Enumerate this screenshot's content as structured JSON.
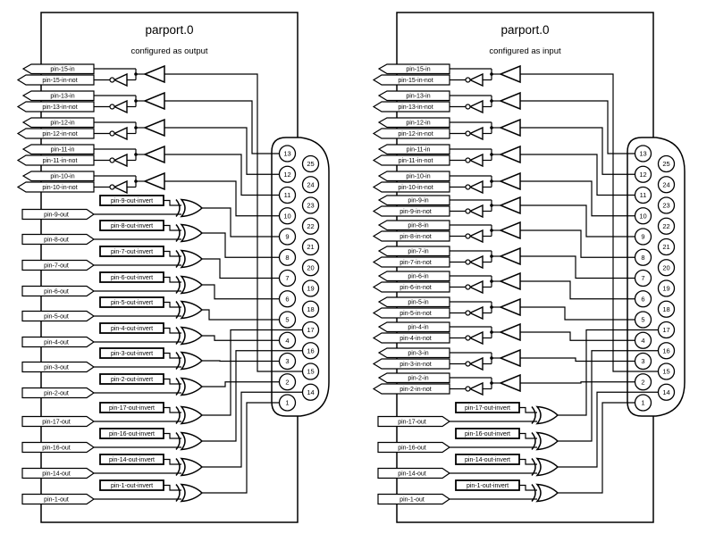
{
  "panels": [
    {
      "title": "parport.0",
      "subtitle": "configured as output",
      "in_pins": [
        {
          "label": "pin-15-in",
          "not_label": "pin-15-in-not",
          "pin": 15
        },
        {
          "label": "pin-13-in",
          "not_label": "pin-13-in-not",
          "pin": 13
        },
        {
          "label": "pin-12-in",
          "not_label": "pin-12-in-not",
          "pin": 12
        },
        {
          "label": "pin-11-in",
          "not_label": "pin-11-in-not",
          "pin": 11
        },
        {
          "label": "pin-10-in",
          "not_label": "pin-10-in-not",
          "pin": 10
        }
      ],
      "out_pins": [
        {
          "label": "pin-9-out",
          "invert_label": "pin-9-out-invert",
          "pin": 9
        },
        {
          "label": "pin-8-out",
          "invert_label": "pin-8-out-invert",
          "pin": 8
        },
        {
          "label": "pin-7-out",
          "invert_label": "pin-7-out-invert",
          "pin": 7
        },
        {
          "label": "pin-6-out",
          "invert_label": "pin-6-out-invert",
          "pin": 6
        },
        {
          "label": "pin-5-out",
          "invert_label": "pin-5-out-invert",
          "pin": 5
        },
        {
          "label": "pin-4-out",
          "invert_label": "pin-4-out-invert",
          "pin": 4
        },
        {
          "label": "pin-3-out",
          "invert_label": "pin-3-out-invert",
          "pin": 3
        },
        {
          "label": "pin-2-out",
          "invert_label": "pin-2-out-invert",
          "pin": 2
        },
        {
          "label": "pin-17-out",
          "invert_label": "pin-17-out-invert",
          "pin": 17
        },
        {
          "label": "pin-16-out",
          "invert_label": "pin-16-out-invert",
          "pin": 16
        },
        {
          "label": "pin-14-out",
          "invert_label": "pin-14-out-invert",
          "pin": 14
        },
        {
          "label": "pin-1-out",
          "invert_label": "pin-1-out-invert",
          "pin": 1
        }
      ]
    },
    {
      "title": "parport.0",
      "subtitle": "configured as input",
      "in_pins": [
        {
          "label": "pin-15-in",
          "not_label": "pin-15-in-not",
          "pin": 15
        },
        {
          "label": "pin-13-in",
          "not_label": "pin-13-in-not",
          "pin": 13
        },
        {
          "label": "pin-12-in",
          "not_label": "pin-12-in-not",
          "pin": 12
        },
        {
          "label": "pin-11-in",
          "not_label": "pin-11-in-not",
          "pin": 11
        },
        {
          "label": "pin-10-in",
          "not_label": "pin-10-in-not",
          "pin": 10
        },
        {
          "label": "pin-9-in",
          "not_label": "pin-9-in-not",
          "pin": 9
        },
        {
          "label": "pin-8-in",
          "not_label": "pin-8-in-not",
          "pin": 8
        },
        {
          "label": "pin-7-in",
          "not_label": "pin-7-in-not",
          "pin": 7
        },
        {
          "label": "pin-6-in",
          "not_label": "pin-6-in-not",
          "pin": 6
        },
        {
          "label": "pin-5-in",
          "not_label": "pin-5-in-not",
          "pin": 5
        },
        {
          "label": "pin-4-in",
          "not_label": "pin-4-in-not",
          "pin": 4
        },
        {
          "label": "pin-3-in",
          "not_label": "pin-3-in-not",
          "pin": 3
        },
        {
          "label": "pin-2-in",
          "not_label": "pin-2-in-not",
          "pin": 2
        }
      ],
      "out_pins": [
        {
          "label": "pin-17-out",
          "invert_label": "pin-17-out-invert",
          "pin": 17
        },
        {
          "label": "pin-16-out",
          "invert_label": "pin-16-out-invert",
          "pin": 16
        },
        {
          "label": "pin-14-out",
          "invert_label": "pin-14-out-invert",
          "pin": 14
        },
        {
          "label": "pin-1-out",
          "invert_label": "pin-1-out-invert",
          "pin": 1
        }
      ]
    }
  ],
  "connector": {
    "left_column": [
      13,
      12,
      11,
      10,
      9,
      8,
      7,
      6,
      5,
      4,
      3,
      2,
      1
    ],
    "right_column": [
      25,
      24,
      23,
      22,
      21,
      20,
      19,
      18,
      17,
      16,
      15,
      14
    ]
  },
  "colors": {
    "line": "#000000",
    "background": "#ffffff"
  }
}
